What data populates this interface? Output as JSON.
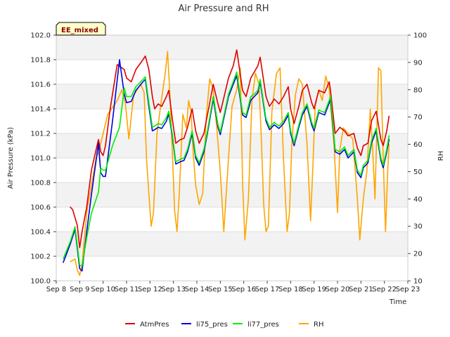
{
  "chart_data": {
    "type": "line",
    "title": "Air Pressure and RH",
    "xlabel": "Time",
    "ylabel": "Air Pressure (kPa)",
    "y2label": "RH",
    "badge": "EE_mixed",
    "xlim": [
      8,
      23
    ],
    "ylim": [
      100.0,
      102.0
    ],
    "y2lim": [
      10,
      100
    ],
    "x_ticks": [
      8,
      9,
      10,
      11,
      12,
      13,
      14,
      15,
      16,
      17,
      18,
      19,
      20,
      21,
      22,
      23
    ],
    "x_tick_labels": [
      "Sep 8",
      "Sep 9",
      "Sep 10",
      "Sep 11",
      "Sep 12",
      "Sep 13",
      "Sep 14",
      "Sep 15",
      "Sep 16",
      "Sep 17",
      "Sep 18",
      "Sep 19",
      "Sep 20",
      "Sep 21",
      "Sep 22",
      "Sep 23"
    ],
    "y_ticks": [
      100.0,
      100.2,
      100.4,
      100.6,
      100.8,
      101.0,
      101.2,
      101.4,
      101.6,
      101.8,
      102.0
    ],
    "y_tick_labels": [
      "100.0",
      "100.2",
      "100.4",
      "100.6",
      "100.8",
      "101.0",
      "101.2",
      "101.4",
      "101.6",
      "101.8",
      "102.0"
    ],
    "y2_ticks": [
      10,
      20,
      30,
      40,
      50,
      60,
      70,
      80,
      90,
      100
    ],
    "y2_tick_labels": [
      "10",
      "20",
      "30",
      "40",
      "50",
      "60",
      "70",
      "80",
      "90",
      "100"
    ],
    "legend_position": "bottom-center",
    "series": [
      {
        "name": "AtmPres",
        "color": "#dd0000",
        "axis": "left",
        "x": [
          8.6,
          8.7,
          8.9,
          9.0,
          9.1,
          9.3,
          9.5,
          9.8,
          9.9,
          10.0,
          10.1,
          10.3,
          10.6,
          10.9,
          11.0,
          11.2,
          11.4,
          11.7,
          11.8,
          11.95,
          12.1,
          12.2,
          12.35,
          12.5,
          12.7,
          12.8,
          12.95,
          13.1,
          13.3,
          13.45,
          13.6,
          13.8,
          13.95,
          14.1,
          14.3,
          14.45,
          14.7,
          14.9,
          15.0,
          15.1,
          15.35,
          15.55,
          15.7,
          15.95,
          16.1,
          16.3,
          16.45,
          16.6,
          16.7,
          16.95,
          17.1,
          17.3,
          17.5,
          17.7,
          17.9,
          18.0,
          18.15,
          18.35,
          18.5,
          18.7,
          18.9,
          19.0,
          19.2,
          19.45,
          19.65,
          19.7,
          19.9,
          20.1,
          20.3,
          20.45,
          20.7,
          20.85,
          21.0,
          21.1,
          21.3,
          21.45,
          21.65,
          21.85,
          21.95,
          22.1,
          22.2
        ],
        "y": [
          100.6,
          100.58,
          100.45,
          100.27,
          100.4,
          100.6,
          100.9,
          101.15,
          101.05,
          101.02,
          101.1,
          101.4,
          101.76,
          101.72,
          101.65,
          101.62,
          101.72,
          101.8,
          101.83,
          101.72,
          101.5,
          101.4,
          101.44,
          101.42,
          101.5,
          101.55,
          101.32,
          101.12,
          101.15,
          101.16,
          101.25,
          101.4,
          101.22,
          101.12,
          101.2,
          101.35,
          101.6,
          101.44,
          101.37,
          101.45,
          101.65,
          101.75,
          101.88,
          101.55,
          101.5,
          101.65,
          101.7,
          101.75,
          101.82,
          101.5,
          101.42,
          101.48,
          101.44,
          101.5,
          101.58,
          101.4,
          101.28,
          101.42,
          101.55,
          101.6,
          101.45,
          101.4,
          101.55,
          101.53,
          101.62,
          101.55,
          101.2,
          101.25,
          101.22,
          101.18,
          101.2,
          101.08,
          101.02,
          101.1,
          101.12,
          101.3,
          101.38,
          101.15,
          101.1,
          101.22,
          101.34
        ]
      },
      {
        "name": "li75_pres",
        "color": "#0000dd",
        "axis": "left",
        "x": [
          8.3,
          8.6,
          8.8,
          9.0,
          9.1,
          9.3,
          9.5,
          9.8,
          9.9,
          10.0,
          10.1,
          10.4,
          10.7,
          10.9,
          11.0,
          11.2,
          11.4,
          11.7,
          11.8,
          11.95,
          12.1,
          12.2,
          12.35,
          12.5,
          12.7,
          12.8,
          12.95,
          13.1,
          13.3,
          13.45,
          13.6,
          13.8,
          13.95,
          14.1,
          14.3,
          14.45,
          14.7,
          14.9,
          15.0,
          15.1,
          15.35,
          15.55,
          15.7,
          15.95,
          16.1,
          16.3,
          16.45,
          16.6,
          16.7,
          16.95,
          17.1,
          17.3,
          17.5,
          17.7,
          17.9,
          18.0,
          18.15,
          18.35,
          18.5,
          18.7,
          18.9,
          19.0,
          19.2,
          19.45,
          19.65,
          19.7,
          19.9,
          20.1,
          20.3,
          20.45,
          20.7,
          20.85,
          21.0,
          21.1,
          21.3,
          21.45,
          21.65,
          21.85,
          21.95,
          22.1,
          22.2
        ],
        "y": [
          100.15,
          100.3,
          100.42,
          100.1,
          100.08,
          100.4,
          100.7,
          101.12,
          100.88,
          100.85,
          100.85,
          101.3,
          101.8,
          101.52,
          101.45,
          101.46,
          101.55,
          101.62,
          101.64,
          101.42,
          101.22,
          101.23,
          101.25,
          101.24,
          101.3,
          101.36,
          101.18,
          100.95,
          100.97,
          100.98,
          101.05,
          101.2,
          101.0,
          100.94,
          101.05,
          101.2,
          101.48,
          101.25,
          101.19,
          101.28,
          101.5,
          101.6,
          101.67,
          101.35,
          101.33,
          101.47,
          101.5,
          101.53,
          101.62,
          101.3,
          101.23,
          101.27,
          101.24,
          101.28,
          101.35,
          101.2,
          101.1,
          101.25,
          101.35,
          101.42,
          101.27,
          101.22,
          101.37,
          101.35,
          101.45,
          101.48,
          101.05,
          101.03,
          101.07,
          101.0,
          101.05,
          100.88,
          100.84,
          100.92,
          100.96,
          101.12,
          101.22,
          100.98,
          100.92,
          101.05,
          101.15
        ]
      },
      {
        "name": "li77_pres",
        "color": "#00ee00",
        "axis": "left",
        "x": [
          8.3,
          8.6,
          8.8,
          9.0,
          9.1,
          9.3,
          9.5,
          9.8,
          9.9,
          10.0,
          10.1,
          10.4,
          10.7,
          10.9,
          11.0,
          11.2,
          11.4,
          11.7,
          11.8,
          11.95,
          12.1,
          12.2,
          12.35,
          12.5,
          12.7,
          12.8,
          12.95,
          13.1,
          13.3,
          13.45,
          13.6,
          13.8,
          13.95,
          14.1,
          14.3,
          14.45,
          14.7,
          14.9,
          15.0,
          15.1,
          15.35,
          15.55,
          15.7,
          15.95,
          16.1,
          16.3,
          16.45,
          16.6,
          16.7,
          16.95,
          17.1,
          17.3,
          17.5,
          17.7,
          17.9,
          18.0,
          18.15,
          18.35,
          18.5,
          18.7,
          18.9,
          19.0,
          19.2,
          19.45,
          19.65,
          19.7,
          19.9,
          20.1,
          20.3,
          20.45,
          20.7,
          20.85,
          21.0,
          21.1,
          21.3,
          21.45,
          21.65,
          21.85,
          21.95,
          22.1,
          22.2
        ],
        "y": [
          100.18,
          100.32,
          100.44,
          100.13,
          100.12,
          100.35,
          100.55,
          100.72,
          100.92,
          100.9,
          100.9,
          101.1,
          101.25,
          101.57,
          101.5,
          101.5,
          101.58,
          101.64,
          101.66,
          101.45,
          101.25,
          101.26,
          101.28,
          101.27,
          101.33,
          101.38,
          101.2,
          100.97,
          100.99,
          101.0,
          101.07,
          101.22,
          101.02,
          100.96,
          101.07,
          101.22,
          101.5,
          101.27,
          101.21,
          101.3,
          101.52,
          101.62,
          101.7,
          101.37,
          101.35,
          101.5,
          101.52,
          101.55,
          101.64,
          101.32,
          101.25,
          101.29,
          101.26,
          101.3,
          101.37,
          101.22,
          101.12,
          101.27,
          101.37,
          101.44,
          101.29,
          101.24,
          101.39,
          101.37,
          101.47,
          101.5,
          101.07,
          101.05,
          101.09,
          101.02,
          101.07,
          100.9,
          100.86,
          100.94,
          100.98,
          101.14,
          101.24,
          101.0,
          100.94,
          101.07,
          101.18
        ]
      },
      {
        "name": "RH",
        "color": "#ffa500",
        "axis": "right",
        "x": [
          8.6,
          8.8,
          8.9,
          9.0,
          9.1,
          9.3,
          9.5,
          9.7,
          9.8,
          10.0,
          10.2,
          10.6,
          10.8,
          10.95,
          11.1,
          11.3,
          11.6,
          11.75,
          11.85,
          11.95,
          12.05,
          12.15,
          12.3,
          12.5,
          12.65,
          12.75,
          12.85,
          12.95,
          13.05,
          13.15,
          13.25,
          13.4,
          13.55,
          13.65,
          13.75,
          13.85,
          13.95,
          14.1,
          14.25,
          14.4,
          14.55,
          14.7,
          14.85,
          15.0,
          15.15,
          15.35,
          15.5,
          15.7,
          15.85,
          15.95,
          16.05,
          16.2,
          16.35,
          16.5,
          16.65,
          16.75,
          16.85,
          16.95,
          17.05,
          17.2,
          17.4,
          17.55,
          17.7,
          17.85,
          17.95,
          18.05,
          18.2,
          18.35,
          18.5,
          18.7,
          18.85,
          18.95,
          19.05,
          19.2,
          19.35,
          19.5,
          19.65,
          19.85,
          20.0,
          20.1,
          20.25,
          20.45,
          20.65,
          20.85,
          20.95,
          21.1,
          21.25,
          21.4,
          21.5,
          21.6,
          21.75,
          21.85,
          21.95,
          22.05,
          22.15,
          22.2
        ],
        "y": [
          17,
          18,
          14,
          12,
          16,
          35,
          45,
          55,
          57,
          64,
          71,
          76,
          80,
          75,
          62,
          78,
          82,
          79,
          55,
          42,
          30,
          35,
          64,
          77,
          86,
          94,
          78,
          58,
          36,
          28,
          42,
          71,
          66,
          76,
          72,
          56,
          45,
          38,
          42,
          70,
          84,
          80,
          66,
          50,
          28,
          55,
          74,
          80,
          88,
          46,
          25,
          40,
          76,
          86,
          82,
          62,
          38,
          28,
          30,
          72,
          86,
          88,
          54,
          28,
          35,
          60,
          78,
          84,
          82,
          60,
          32,
          52,
          74,
          80,
          76,
          85,
          80,
          60,
          35,
          58,
          66,
          64,
          62,
          40,
          25,
          40,
          50,
          73,
          58,
          40,
          88,
          87,
          55,
          28,
          52,
          60
        ]
      }
    ]
  }
}
